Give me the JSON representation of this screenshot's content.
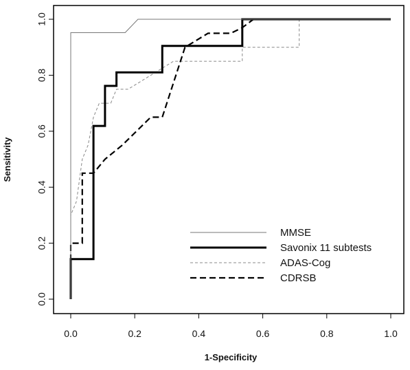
{
  "chart_data": {
    "type": "line",
    "title": "",
    "xlabel": "1-Specificity",
    "ylabel": "Sensitivity",
    "xlim": [
      0,
      1
    ],
    "ylim": [
      0,
      1
    ],
    "x_ticks": [
      0.0,
      0.2,
      0.4,
      0.6,
      0.8,
      1.0
    ],
    "x_tick_labels": [
      "0.0",
      "0.2",
      "0.4",
      "0.6",
      "0.8",
      "1.0"
    ],
    "y_ticks": [
      0.0,
      0.2,
      0.4,
      0.6,
      0.8,
      1.0
    ],
    "y_tick_labels": [
      "0.0",
      "0.2",
      "0.4",
      "0.6",
      "0.8",
      "1.0"
    ],
    "grid": false,
    "legend_position": "bottom-right",
    "series": [
      {
        "name": "MMSE",
        "color": "#777777",
        "style": "solid-thin",
        "x": [
          0,
          0,
          0.17,
          0.21,
          1.0
        ],
        "y": [
          0,
          0.952,
          0.952,
          1.0,
          1.0
        ]
      },
      {
        "name": "Savonix 11 subtests",
        "color": "#000000",
        "style": "solid-thick",
        "x": [
          0,
          0,
          0.071,
          0.071,
          0.107,
          0.107,
          0.143,
          0.143,
          0.286,
          0.286,
          0.536,
          0.536,
          1.0
        ],
        "y": [
          0,
          0.143,
          0.143,
          0.619,
          0.619,
          0.762,
          0.762,
          0.81,
          0.81,
          0.905,
          0.905,
          1.0,
          1.0
        ]
      },
      {
        "name": "ADAS-Cog",
        "color": "#888888",
        "style": "dashed-thin",
        "x": [
          0,
          0,
          0.018,
          0.036,
          0.054,
          0.071,
          0.089,
          0.125,
          0.143,
          0.179,
          0.321,
          0.339,
          0.536,
          0.536,
          0.714,
          0.714,
          1.0
        ],
        "y": [
          0,
          0.3,
          0.35,
          0.5,
          0.55,
          0.65,
          0.7,
          0.7,
          0.75,
          0.75,
          0.85,
          0.85,
          0.85,
          0.9,
          0.9,
          1.0,
          1.0
        ]
      },
      {
        "name": "CDRSB",
        "color": "#000000",
        "style": "dashed-thick",
        "x": [
          0,
          0,
          0.036,
          0.036,
          0.071,
          0.107,
          0.161,
          0.25,
          0.286,
          0.357,
          0.429,
          0.5,
          0.536,
          0.571,
          1.0
        ],
        "y": [
          0,
          0.2,
          0.2,
          0.45,
          0.45,
          0.5,
          0.55,
          0.65,
          0.65,
          0.9,
          0.95,
          0.95,
          0.97,
          1.0,
          1.0
        ]
      }
    ]
  }
}
